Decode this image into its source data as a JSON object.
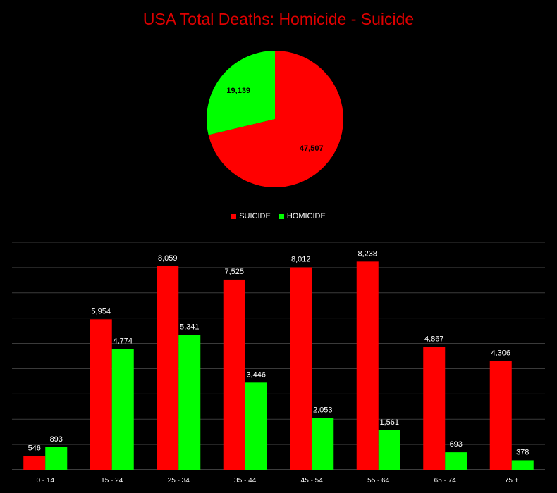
{
  "chart_data": [
    {
      "type": "pie",
      "title": "USA Total Deaths: Homicide - Suicide",
      "slices": [
        {
          "name": "SUICIDE",
          "value": 47507,
          "label": "47,507",
          "color": "#ff0000"
        },
        {
          "name": "HOMICIDE",
          "value": 19139,
          "label": "19,139",
          "color": "#00ff00"
        }
      ],
      "legend_position": "bottom"
    },
    {
      "type": "bar",
      "categories": [
        "0 - 14",
        "15 - 24",
        "25 - 34",
        "35 - 44",
        "45 - 54",
        "55 - 64",
        "65 - 74",
        "75 +"
      ],
      "series": [
        {
          "name": "SUICIDE",
          "color": "#ff0000",
          "values": [
            546,
            5954,
            8059,
            7525,
            8012,
            8238,
            4867,
            4306
          ],
          "labels": [
            "546",
            "5,954",
            "8,059",
            "7,525",
            "8,012",
            "8,238",
            "4,867",
            "4,306"
          ]
        },
        {
          "name": "HOMICIDE",
          "color": "#00ff00",
          "values": [
            893,
            4774,
            5341,
            3446,
            2053,
            1561,
            693,
            378
          ],
          "labels": [
            "893",
            "4,774",
            "5,341",
            "3,446",
            "2,053",
            "1,561",
            "693",
            "378"
          ]
        }
      ],
      "ylim": [
        0,
        9000
      ],
      "grid": true
    }
  ],
  "legend": [
    {
      "name": "SUICIDE",
      "color": "#ff0000"
    },
    {
      "name": "HOMICIDE",
      "color": "#00ff00"
    }
  ]
}
